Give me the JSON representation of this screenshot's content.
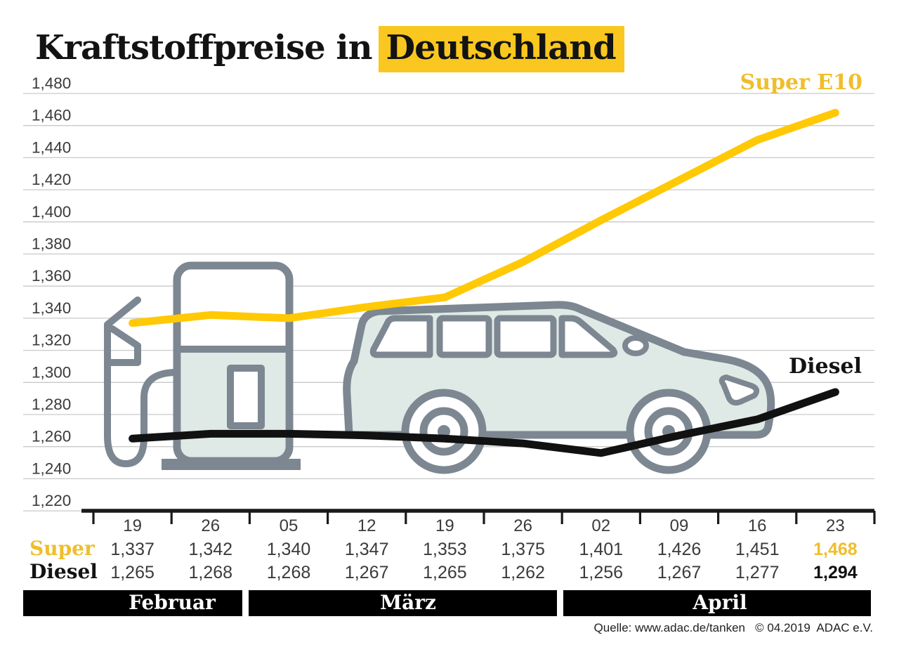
{
  "title": {
    "plain": "Kraftstoffpreise in",
    "highlighted": "Deutschland"
  },
  "series_labels": {
    "super": "Super E10",
    "diesel": "Diesel"
  },
  "months": [
    {
      "label": "Februar"
    },
    {
      "label": "März"
    },
    {
      "label": "April"
    }
  ],
  "table": {
    "row_labels": {
      "super": "Super",
      "diesel": "Diesel"
    },
    "dates": [
      "19",
      "26",
      "05",
      "12",
      "19",
      "26",
      "02",
      "09",
      "16",
      "23"
    ],
    "super_values": [
      "1,337",
      "1,342",
      "1,340",
      "1,347",
      "1,353",
      "1,375",
      "1,401",
      "1,426",
      "1,451",
      "1,468"
    ],
    "diesel_values": [
      "1,265",
      "1,268",
      "1,268",
      "1,267",
      "1,265",
      "1,262",
      "1,256",
      "1,267",
      "1,277",
      "1,294"
    ],
    "emphasize_last": true
  },
  "source": "Quelle: www.adac.de/tanken   © 04.2019  ADAC e.V.",
  "colors": {
    "highlight": "#F9C71F",
    "super_line": "#FFC905",
    "diesel_line": "#111111",
    "gold_text": "#EFBE2B",
    "grid": "#C9C9C9",
    "axis": "#1a1a1a",
    "illustration_stroke": "#7C8791",
    "illustration_fill": "#DFE9E6",
    "label_text": "#3a3a3a"
  },
  "chart_data": {
    "type": "line",
    "title": "Kraftstoffpreise in Deutschland",
    "x": [
      "19",
      "26",
      "05",
      "12",
      "19",
      "26",
      "02",
      "09",
      "16",
      "23"
    ],
    "month_groups": [
      {
        "label": "Februar",
        "ticks": [
          "19",
          "26"
        ]
      },
      {
        "label": "März",
        "ticks": [
          "05",
          "12",
          "19",
          "26"
        ]
      },
      {
        "label": "April",
        "ticks": [
          "02",
          "09",
          "16",
          "23"
        ]
      }
    ],
    "series": [
      {
        "name": "Super E10",
        "color": "#FFC905",
        "values": [
          1.337,
          1.342,
          1.34,
          1.347,
          1.353,
          1.375,
          1.401,
          1.426,
          1.451,
          1.468
        ]
      },
      {
        "name": "Diesel",
        "color": "#111111",
        "values": [
          1.265,
          1.268,
          1.268,
          1.267,
          1.265,
          1.262,
          1.256,
          1.267,
          1.277,
          1.294
        ]
      }
    ],
    "ylim": [
      1.22,
      1.48
    ],
    "ytick_step": 0.02,
    "ytick_labels": [
      "1,220",
      "1,240",
      "1,260",
      "1,280",
      "1,300",
      "1,320",
      "1,340",
      "1,360",
      "1,380",
      "1,400",
      "1,420",
      "1,440",
      "1,460",
      "1,480"
    ],
    "grid": true,
    "legend_position": "inline-right"
  }
}
